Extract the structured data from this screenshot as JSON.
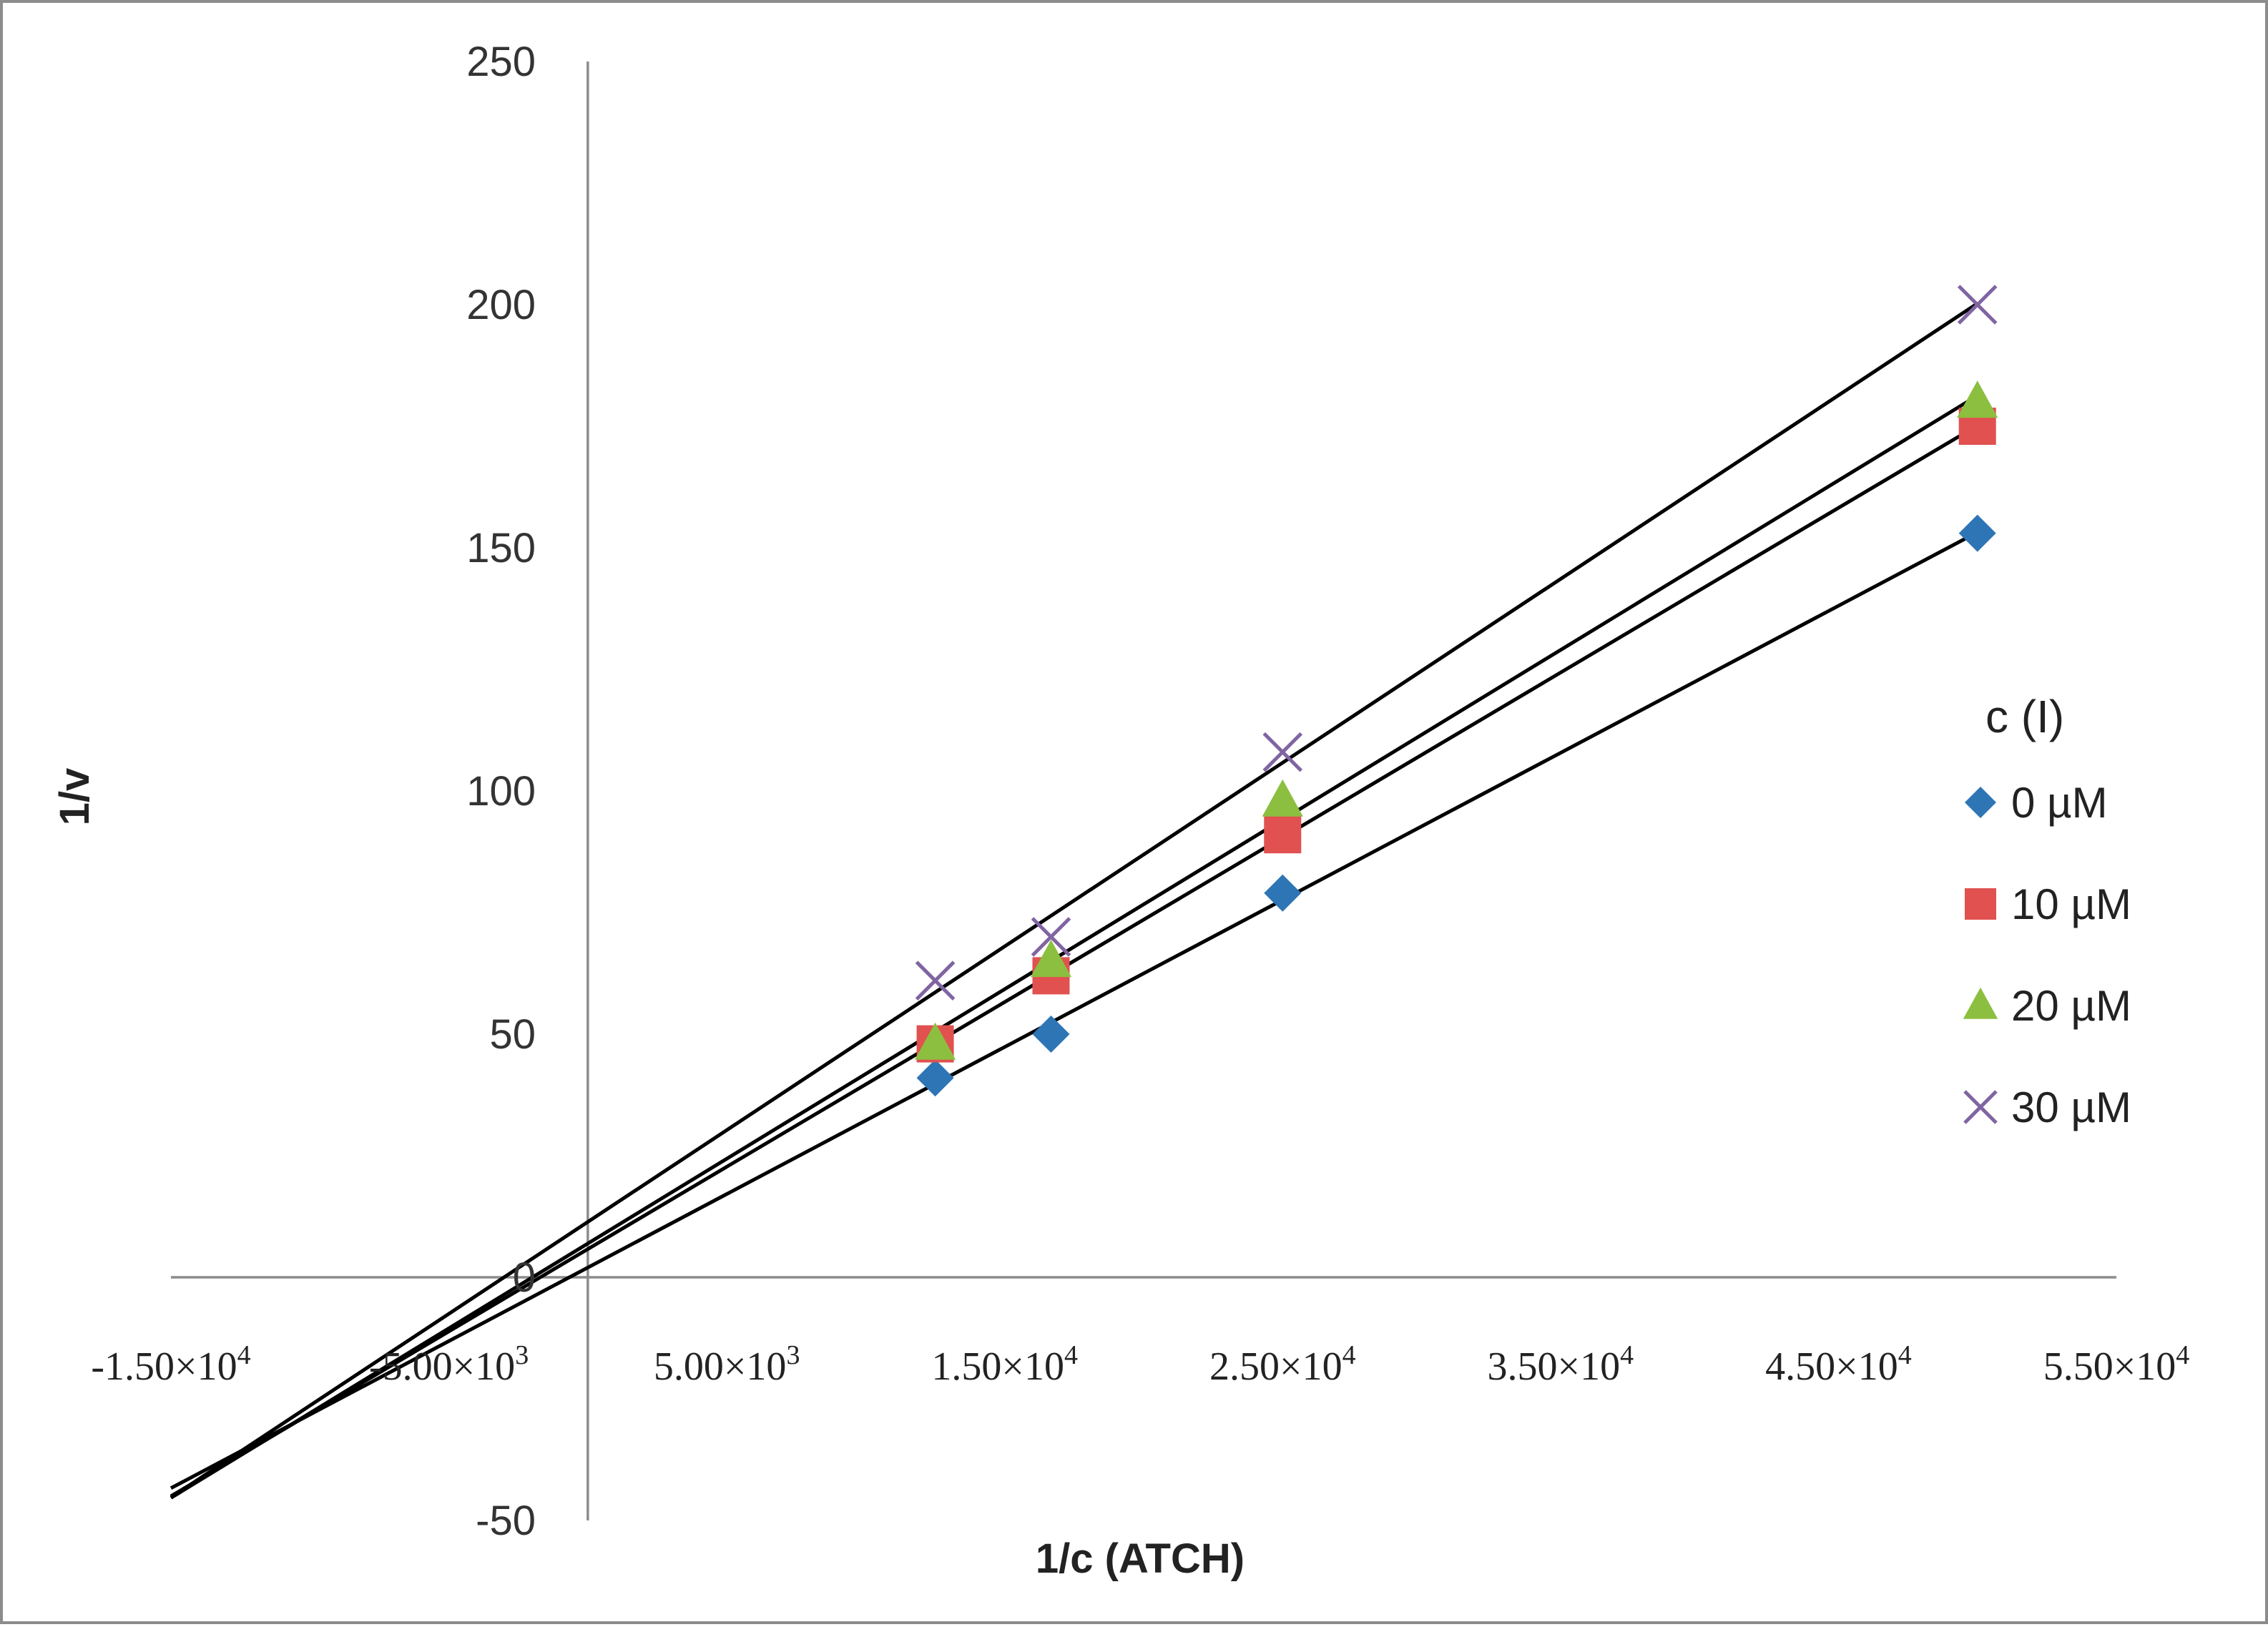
{
  "chart_data": {
    "type": "scatter",
    "xlabel": "1/c (ATCH)",
    "ylabel": "1/v",
    "xlim": [
      -15000,
      55000
    ],
    "ylim": [
      -50,
      250
    ],
    "y_ticks": [
      "250",
      "200",
      "150",
      "100",
      "50",
      "0",
      "-50"
    ],
    "x_ticks": [
      {
        "mant": "-1.50",
        "exp": "4"
      },
      {
        "mant": "-5.00",
        "exp": "3"
      },
      {
        "mant": "5.00",
        "exp": "3"
      },
      {
        "mant": "1.50",
        "exp": "4"
      },
      {
        "mant": "2.50",
        "exp": "4"
      },
      {
        "mant": "3.50",
        "exp": "4"
      },
      {
        "mant": "4.50",
        "exp": "4"
      },
      {
        "mant": "5.50",
        "exp": "4"
      }
    ],
    "legend_title": "c (I)",
    "legend_position": "right",
    "trendlines": "linear",
    "series": [
      {
        "name": "0 µM",
        "marker": "diamond",
        "color": "#2e75b6",
        "x": [
          12500,
          16667,
          25000,
          50000
        ],
        "y": [
          41,
          50,
          79,
          153
        ]
      },
      {
        "name": "10 µM",
        "marker": "square",
        "color": "#e05150",
        "x": [
          12500,
          16667,
          25000,
          50000
        ],
        "y": [
          48,
          62,
          91,
          175
        ]
      },
      {
        "name": "20 µM",
        "marker": "triangle",
        "color": "#8cbf3f",
        "x": [
          12500,
          16667,
          25000,
          50000
        ],
        "y": [
          48,
          65,
          98,
          180
        ]
      },
      {
        "name": "30 µM",
        "marker": "cross",
        "color": "#8064a2",
        "x": [
          12500,
          16667,
          25000,
          50000
        ],
        "y": [
          61,
          70,
          108,
          200
        ]
      }
    ]
  }
}
